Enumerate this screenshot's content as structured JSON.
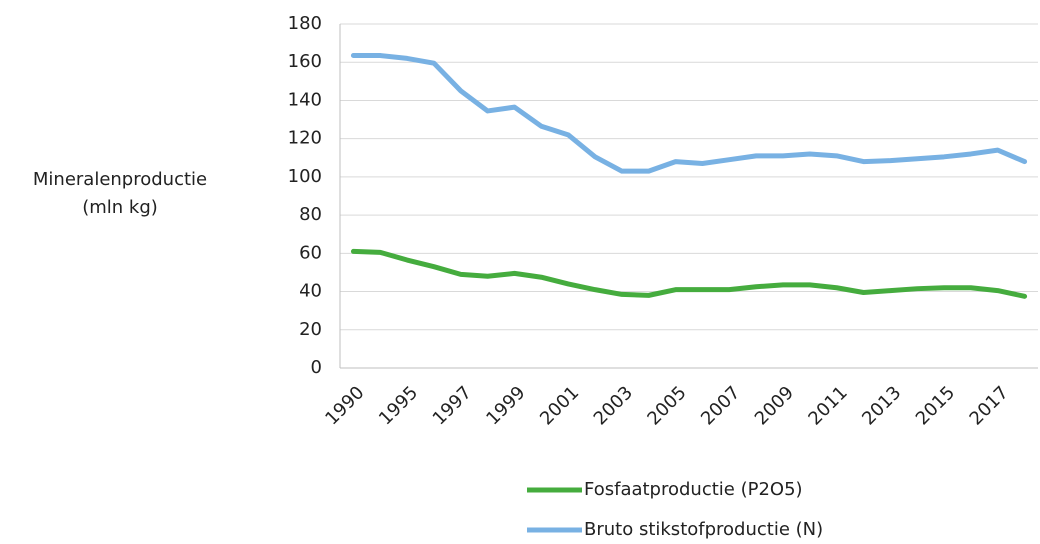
{
  "chart_data": {
    "type": "line",
    "ylabel": [
      "Mineralenproductie",
      "(mln kg)"
    ],
    "categories": [
      "1990",
      null,
      "1995",
      null,
      "1997",
      null,
      "1999",
      null,
      "2001",
      null,
      "2003",
      null,
      "2005",
      null,
      "2007",
      null,
      "2009",
      null,
      "2011",
      null,
      "2013",
      null,
      "2015",
      null,
      "2017",
      null
    ],
    "series": [
      {
        "name": "Fosfaatproductie (P2O5)",
        "color": "#45ac3e",
        "values": [
          61,
          60.5,
          56.5,
          53,
          49,
          48,
          49.5,
          47.5,
          44,
          41,
          38.5,
          38,
          41,
          41,
          41,
          42.5,
          43.5,
          43.5,
          42,
          39.5,
          40.5,
          41.5,
          42,
          42,
          40.5,
          37.5
        ]
      },
      {
        "name": "Bruto stikstofproductie (N)",
        "color": "#78b1e3",
        "values": [
          163.5,
          163.5,
          162,
          159.5,
          145,
          134.5,
          136.5,
          126.5,
          122,
          110.5,
          103,
          103,
          108,
          107,
          109,
          111,
          111,
          112,
          111,
          108,
          108.5,
          109.5,
          110.5,
          112,
          114,
          108
        ]
      }
    ],
    "ylim": [
      0,
      180
    ],
    "yticks": [
      0,
      20,
      40,
      60,
      80,
      100,
      120,
      140,
      160,
      180
    ],
    "grid": true
  }
}
